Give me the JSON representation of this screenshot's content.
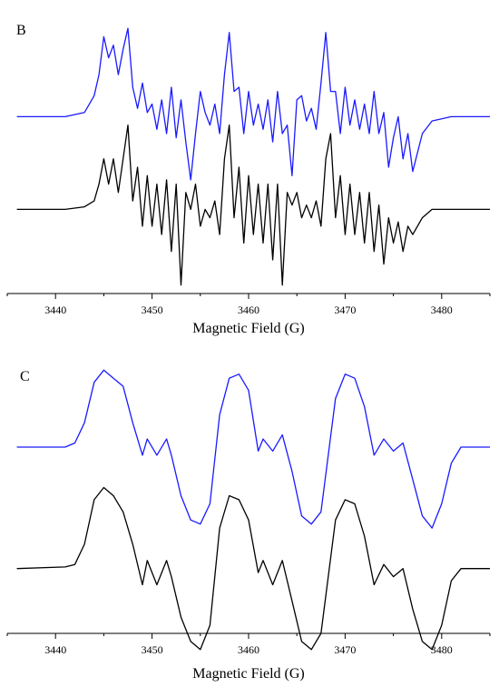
{
  "chart_data": [
    {
      "type": "line",
      "panel_label": "B",
      "xlabel": "Magnetic Field (G)",
      "xlim": [
        3435,
        3485
      ],
      "ylim": [
        -1.1,
        2.3
      ],
      "x_ticks": [
        3440,
        3450,
        3460,
        3470,
        3480
      ],
      "grid": false,
      "colors": {
        "blue": "#1a1aff",
        "black": "#000000"
      },
      "series": [
        {
          "color": "blue",
          "offset": 1.0,
          "points": [
            [
              3436,
              0.0
            ],
            [
              3441,
              0.0
            ],
            [
              3443,
              0.05
            ],
            [
              3444,
              0.25
            ],
            [
              3444.5,
              0.5
            ],
            [
              3445,
              0.95
            ],
            [
              3445.5,
              0.7
            ],
            [
              3446,
              0.85
            ],
            [
              3446.5,
              0.5
            ],
            [
              3447,
              0.8
            ],
            [
              3447.5,
              1.05
            ],
            [
              3448,
              0.35
            ],
            [
              3448.5,
              0.1
            ],
            [
              3449,
              0.4
            ],
            [
              3449.5,
              0.05
            ],
            [
              3450,
              0.15
            ],
            [
              3450.5,
              -0.15
            ],
            [
              3451,
              0.2
            ],
            [
              3451.5,
              -0.2
            ],
            [
              3452,
              0.35
            ],
            [
              3452.5,
              -0.25
            ],
            [
              3453,
              0.2
            ],
            [
              3453.5,
              -0.3
            ],
            [
              3454,
              -0.75
            ],
            [
              3454.5,
              -0.2
            ],
            [
              3455,
              0.3
            ],
            [
              3455.5,
              0.05
            ],
            [
              3456,
              -0.1
            ],
            [
              3456.5,
              0.15
            ],
            [
              3457,
              -0.2
            ],
            [
              3457.5,
              0.5
            ],
            [
              3458,
              1.0
            ],
            [
              3458.5,
              0.3
            ],
            [
              3459,
              0.35
            ],
            [
              3459.5,
              -0.2
            ],
            [
              3460,
              0.3
            ],
            [
              3460.5,
              -0.1
            ],
            [
              3461,
              0.15
            ],
            [
              3461.5,
              -0.15
            ],
            [
              3462,
              0.2
            ],
            [
              3462.5,
              -0.3
            ],
            [
              3463,
              0.3
            ],
            [
              3463.5,
              -0.2
            ],
            [
              3464,
              -0.1
            ],
            [
              3464.5,
              -0.7
            ],
            [
              3465,
              0.2
            ],
            [
              3465.5,
              0.25
            ],
            [
              3466,
              -0.05
            ],
            [
              3466.5,
              0.1
            ],
            [
              3467,
              -0.15
            ],
            [
              3467.5,
              0.4
            ],
            [
              3468,
              1.0
            ],
            [
              3468.5,
              0.3
            ],
            [
              3469,
              0.3
            ],
            [
              3469.5,
              -0.2
            ],
            [
              3470,
              0.35
            ],
            [
              3470.5,
              -0.1
            ],
            [
              3471,
              0.2
            ],
            [
              3471.5,
              -0.15
            ],
            [
              3472,
              0.15
            ],
            [
              3472.5,
              -0.2
            ],
            [
              3473,
              0.3
            ],
            [
              3473.5,
              -0.2
            ],
            [
              3474,
              0.05
            ],
            [
              3474.5,
              -0.6
            ],
            [
              3475,
              -0.25
            ],
            [
              3475.5,
              0.0
            ],
            [
              3476,
              -0.5
            ],
            [
              3476.5,
              -0.2
            ],
            [
              3477,
              -0.65
            ],
            [
              3478,
              -0.2
            ],
            [
              3479,
              -0.05
            ],
            [
              3481,
              0.0
            ],
            [
              3485,
              0.0
            ]
          ]
        },
        {
          "color": "black",
          "offset": -0.1,
          "points": [
            [
              3436,
              0.0
            ],
            [
              3441,
              0.0
            ],
            [
              3443,
              0.03
            ],
            [
              3444,
              0.1
            ],
            [
              3444.5,
              0.3
            ],
            [
              3445,
              0.6
            ],
            [
              3445.5,
              0.3
            ],
            [
              3446,
              0.6
            ],
            [
              3446.5,
              0.2
            ],
            [
              3447,
              0.6
            ],
            [
              3447.5,
              1.0
            ],
            [
              3448,
              0.1
            ],
            [
              3448.5,
              0.5
            ],
            [
              3449,
              -0.2
            ],
            [
              3449.5,
              0.4
            ],
            [
              3450,
              -0.2
            ],
            [
              3450.5,
              0.3
            ],
            [
              3451,
              -0.3
            ],
            [
              3451.5,
              0.35
            ],
            [
              3452,
              -0.5
            ],
            [
              3452.5,
              0.3
            ],
            [
              3453,
              -0.9
            ],
            [
              3453.5,
              0.2
            ],
            [
              3454,
              0.0
            ],
            [
              3454.5,
              0.3
            ],
            [
              3455,
              -0.2
            ],
            [
              3455.5,
              0.0
            ],
            [
              3456,
              -0.1
            ],
            [
              3456.5,
              0.1
            ],
            [
              3457,
              -0.3
            ],
            [
              3457.5,
              0.6
            ],
            [
              3458,
              1.0
            ],
            [
              3458.5,
              -0.1
            ],
            [
              3459,
              0.5
            ],
            [
              3459.5,
              -0.4
            ],
            [
              3460,
              0.4
            ],
            [
              3460.5,
              -0.3
            ],
            [
              3461,
              0.3
            ],
            [
              3461.5,
              -0.4
            ],
            [
              3462,
              0.3
            ],
            [
              3462.5,
              -0.6
            ],
            [
              3463,
              0.3
            ],
            [
              3463.5,
              -0.9
            ],
            [
              3464,
              0.2
            ],
            [
              3464.5,
              0.05
            ],
            [
              3465,
              0.2
            ],
            [
              3465.5,
              -0.1
            ],
            [
              3466,
              0.05
            ],
            [
              3466.5,
              -0.1
            ],
            [
              3467,
              0.1
            ],
            [
              3467.5,
              -0.2
            ],
            [
              3468,
              0.6
            ],
            [
              3468.5,
              0.9
            ],
            [
              3469,
              -0.1
            ],
            [
              3469.5,
              0.4
            ],
            [
              3470,
              -0.3
            ],
            [
              3470.5,
              0.3
            ],
            [
              3471,
              -0.3
            ],
            [
              3471.5,
              0.2
            ],
            [
              3472,
              -0.4
            ],
            [
              3472.5,
              0.2
            ],
            [
              3473,
              -0.5
            ],
            [
              3473.5,
              0.05
            ],
            [
              3474,
              -0.65
            ],
            [
              3474.5,
              -0.1
            ],
            [
              3475,
              -0.4
            ],
            [
              3475.5,
              -0.15
            ],
            [
              3476,
              -0.5
            ],
            [
              3476.5,
              -0.2
            ],
            [
              3477,
              -0.3
            ],
            [
              3478,
              -0.1
            ],
            [
              3479,
              0.0
            ],
            [
              3481,
              0.0
            ],
            [
              3485,
              0.0
            ]
          ]
        }
      ]
    },
    {
      "type": "line",
      "panel_label": "C",
      "xlabel": "Magnetic Field (G)",
      "xlim": [
        3435,
        3485
      ],
      "ylim": [
        -1.2,
        2.3
      ],
      "x_ticks": [
        3440,
        3450,
        3460,
        3470,
        3480
      ],
      "grid": false,
      "colors": {
        "blue": "#1a1aff",
        "black": "#000000"
      },
      "series": [
        {
          "color": "blue",
          "offset": 1.1,
          "points": [
            [
              3436,
              0.0
            ],
            [
              3441,
              0.0
            ],
            [
              3442,
              0.05
            ],
            [
              3443,
              0.3
            ],
            [
              3444,
              0.8
            ],
            [
              3445,
              0.95
            ],
            [
              3446,
              0.85
            ],
            [
              3447,
              0.75
            ],
            [
              3448,
              0.3
            ],
            [
              3449,
              -0.1
            ],
            [
              3449.5,
              0.1
            ],
            [
              3450.5,
              -0.1
            ],
            [
              3451.5,
              0.1
            ],
            [
              3452,
              -0.1
            ],
            [
              3453,
              -0.6
            ],
            [
              3454,
              -0.9
            ],
            [
              3455,
              -0.95
            ],
            [
              3456,
              -0.7
            ],
            [
              3457,
              0.4
            ],
            [
              3458,
              0.85
            ],
            [
              3459,
              0.9
            ],
            [
              3460,
              0.7
            ],
            [
              3461,
              -0.05
            ],
            [
              3461.5,
              0.1
            ],
            [
              3462.5,
              -0.05
            ],
            [
              3463.5,
              0.15
            ],
            [
              3464.5,
              -0.3
            ],
            [
              3465.5,
              -0.85
            ],
            [
              3466.5,
              -0.95
            ],
            [
              3467.5,
              -0.8
            ],
            [
              3469,
              0.6
            ],
            [
              3470,
              0.9
            ],
            [
              3471,
              0.85
            ],
            [
              3472,
              0.5
            ],
            [
              3473,
              -0.1
            ],
            [
              3474,
              0.1
            ],
            [
              3475,
              -0.05
            ],
            [
              3476,
              0.05
            ],
            [
              3477,
              -0.4
            ],
            [
              3478,
              -0.85
            ],
            [
              3479,
              -1.0
            ],
            [
              3480,
              -0.7
            ],
            [
              3481,
              -0.2
            ],
            [
              3482,
              0.0
            ],
            [
              3485,
              0.0
            ]
          ]
        },
        {
          "color": "black",
          "offset": -0.4,
          "points": [
            [
              3436,
              0.0
            ],
            [
              3441,
              0.02
            ],
            [
              3442,
              0.05
            ],
            [
              3443,
              0.3
            ],
            [
              3444,
              0.85
            ],
            [
              3445,
              1.0
            ],
            [
              3446,
              0.9
            ],
            [
              3447,
              0.7
            ],
            [
              3448,
              0.3
            ],
            [
              3449,
              -0.2
            ],
            [
              3449.5,
              0.1
            ],
            [
              3450.5,
              -0.2
            ],
            [
              3451.5,
              0.1
            ],
            [
              3452,
              -0.1
            ],
            [
              3453,
              -0.6
            ],
            [
              3454,
              -0.9
            ],
            [
              3455,
              -1.0
            ],
            [
              3456,
              -0.7
            ],
            [
              3457,
              0.5
            ],
            [
              3458,
              0.9
            ],
            [
              3459,
              0.85
            ],
            [
              3460,
              0.6
            ],
            [
              3461,
              -0.05
            ],
            [
              3461.5,
              0.1
            ],
            [
              3462.5,
              -0.2
            ],
            [
              3463.5,
              0.1
            ],
            [
              3464.5,
              -0.4
            ],
            [
              3465.5,
              -0.9
            ],
            [
              3466.5,
              -1.0
            ],
            [
              3467.5,
              -0.8
            ],
            [
              3469,
              0.6
            ],
            [
              3470,
              0.85
            ],
            [
              3471,
              0.8
            ],
            [
              3472,
              0.4
            ],
            [
              3473,
              -0.2
            ],
            [
              3474,
              0.05
            ],
            [
              3475,
              -0.1
            ],
            [
              3476,
              0.0
            ],
            [
              3477,
              -0.5
            ],
            [
              3478,
              -0.9
            ],
            [
              3479,
              -1.0
            ],
            [
              3480,
              -0.7
            ],
            [
              3481,
              -0.15
            ],
            [
              3482,
              0.0
            ],
            [
              3485,
              0.0
            ]
          ]
        }
      ]
    }
  ]
}
